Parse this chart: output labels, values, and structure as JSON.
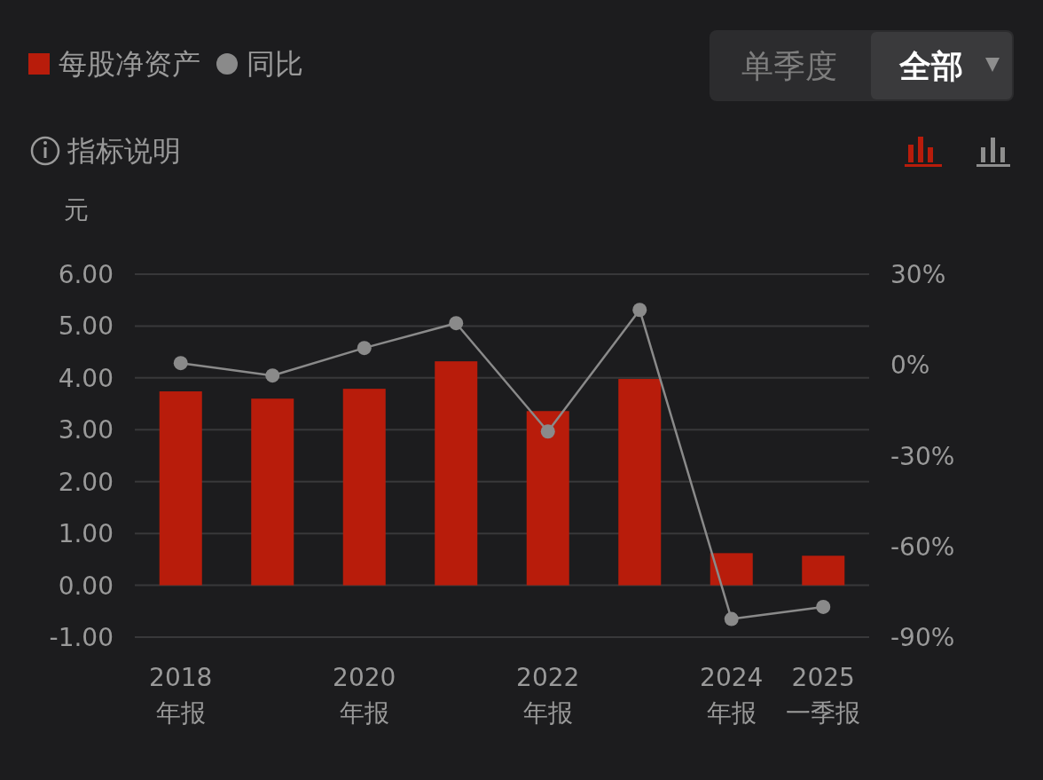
{
  "chart_data": {
    "type": "bar",
    "ylabel": "元",
    "annotations": [
      "单季度",
      "全部",
      "指标说明"
    ],
    "categories": [
      "2018\n年报",
      null,
      "2020\n年报",
      null,
      "2022\n年报",
      null,
      "2024\n年报",
      "2025\n一季报"
    ],
    "series": [
      {
        "name": "每股净资产",
        "color": "#b81c0b",
        "values": [
          3.74,
          3.6,
          3.79,
          4.32,
          3.36,
          3.98,
          0.62,
          0.57
        ]
      },
      {
        "name": "同比",
        "type": "line",
        "axis": "y2",
        "color": "#8a8a8a",
        "values": [
          0.6,
          -3.5,
          5.6,
          13.8,
          -22,
          18.2,
          -84,
          -80
        ]
      }
    ],
    "ylim": [
      -1,
      6
    ],
    "yticks": [
      {
        "value": -1,
        "label": "-1.00"
      },
      {
        "value": 0,
        "label": "0.00"
      },
      {
        "value": 1,
        "label": "1.00"
      },
      {
        "value": 2,
        "label": "2.00"
      },
      {
        "value": 3,
        "label": "3.00"
      },
      {
        "value": 4,
        "label": "4.00"
      },
      {
        "value": 5,
        "label": "5.00"
      },
      {
        "value": 6,
        "label": "6.00"
      }
    ],
    "y2lim": [
      -90,
      30
    ],
    "y2ticks": [
      {
        "value": -90,
        "label": "-90%"
      },
      {
        "value": -60,
        "label": "-60%"
      },
      {
        "value": -30,
        "label": "-30%"
      },
      {
        "value": 0,
        "label": "0%"
      },
      {
        "value": 30,
        "label": "30%"
      }
    ],
    "grid": "y",
    "legend": "top left",
    "marker": "circle"
  }
}
